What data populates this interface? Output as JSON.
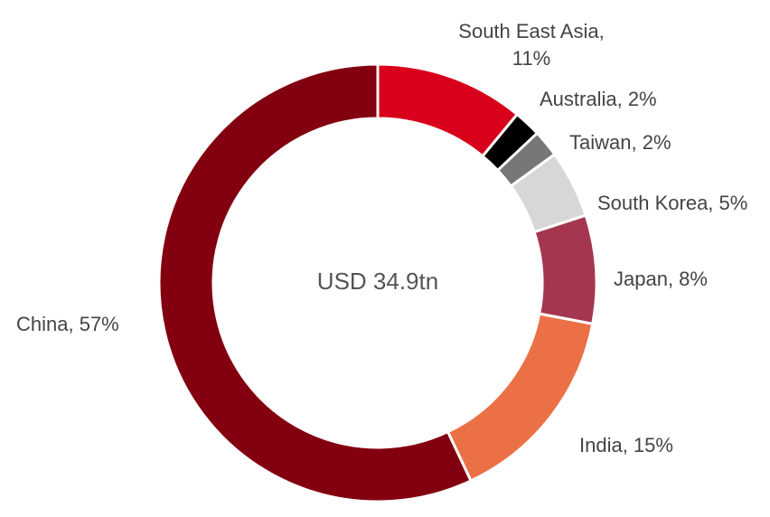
{
  "chart_data": {
    "type": "donut",
    "center_label": "USD 34.9tn",
    "values": [
      11,
      2,
      2,
      5,
      8,
      15,
      57
    ],
    "value_labels": [
      "South East Asia, 11%",
      "Australia, 2%",
      "Taiwan, 2%",
      "South Korea, 5%",
      "Japan, 8%",
      "India, 15%",
      "China, 57%"
    ],
    "colors": [
      "#d9001b",
      "#000000",
      "#777777",
      "#d7d7d7",
      "#a4374f",
      "#ec7046",
      "#830010"
    ]
  }
}
